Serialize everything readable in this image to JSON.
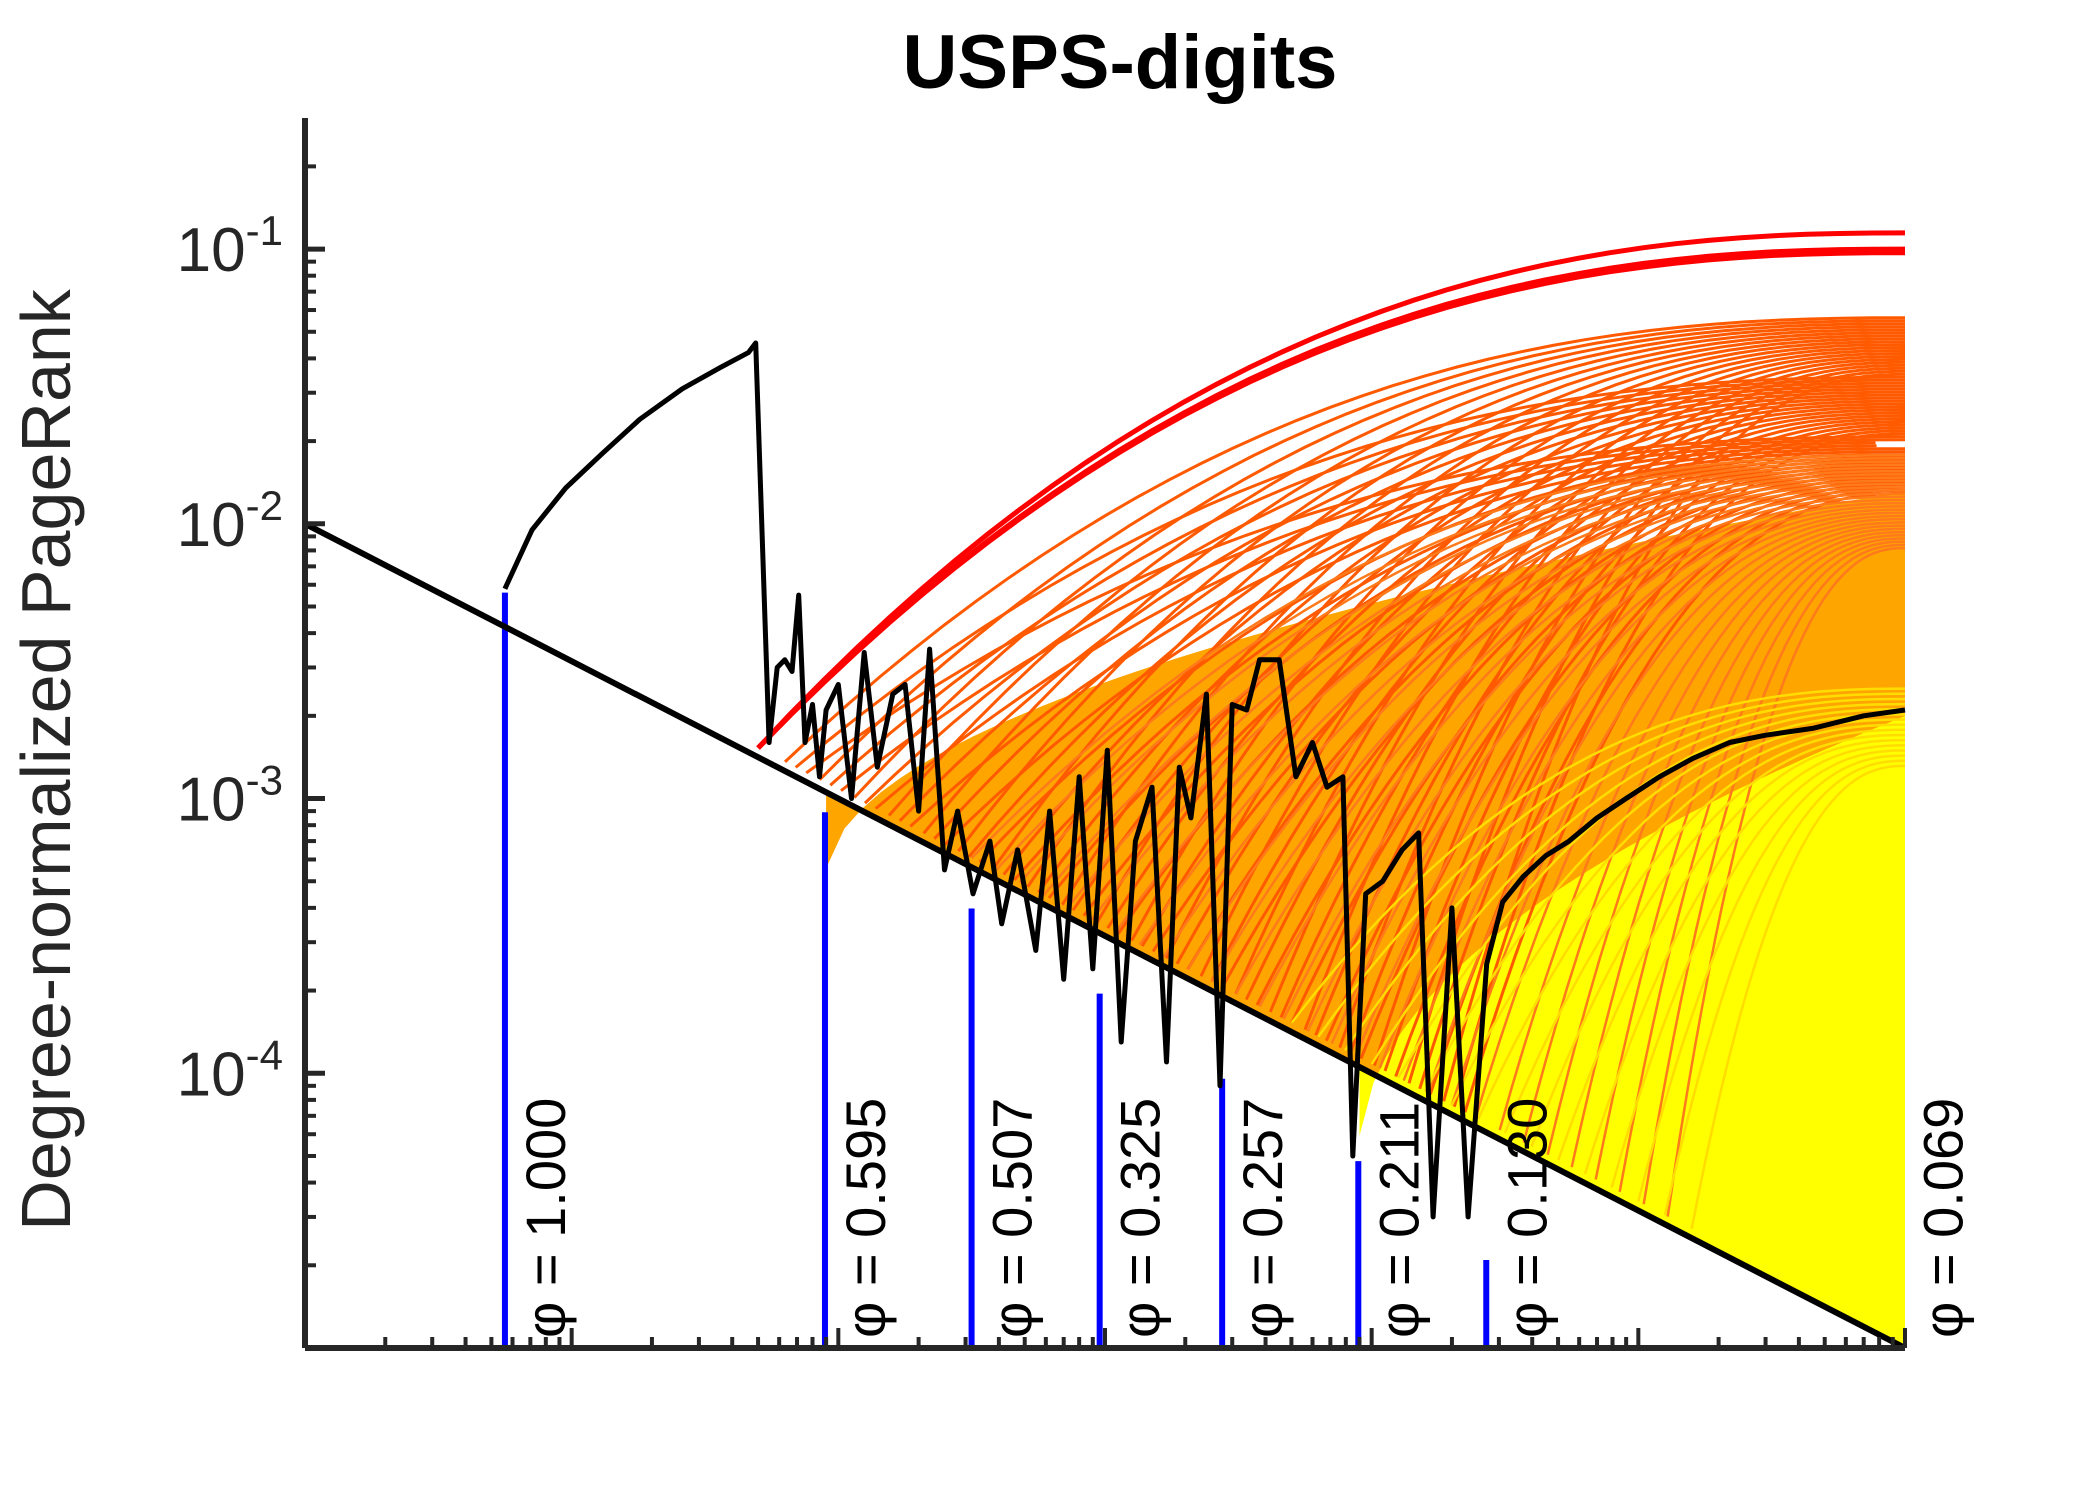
{
  "chart_data": {
    "type": "line",
    "title": "USPS-digits",
    "xlabel": "",
    "ylabel": "Degree-normalized PageRank",
    "yscale": "log",
    "ylim": [
      1e-05,
      0.3
    ],
    "xlim": [
      1e-06,
      1
    ],
    "xscale": "log",
    "yticks": [
      {
        "base": "10",
        "exp": "-1",
        "value": 0.1
      },
      {
        "base": "10",
        "exp": "-2",
        "value": 0.01
      },
      {
        "base": "10",
        "exp": "-3",
        "value": 0.001
      },
      {
        "base": "10",
        "exp": "-4",
        "value": 0.0001
      }
    ],
    "grid": false,
    "colors": {
      "boundary": "#000000",
      "path": "#000000",
      "phi_lines": "#0000ff",
      "series": [
        "#ff0000",
        "#ff5a00",
        "#ff7a1a",
        "#ffa500",
        "#ffff00"
      ]
    },
    "boundary_line": {
      "x": [
        1e-06,
        1
      ],
      "y": [
        0.01,
        1e-05
      ]
    },
    "phi_markers": [
      {
        "label": "φ = 1.000",
        "x": 5.62e-06,
        "y": 0.00562
      },
      {
        "label": "φ = 0.595",
        "x": 8.91e-05,
        "y": 0.000891
      },
      {
        "label": "φ = 0.507",
        "x": 0.000316,
        "y": 0.000398
      },
      {
        "label": "φ = 0.325",
        "x": 0.000955,
        "y": 0.000195
      },
      {
        "label": "φ = 0.257",
        "x": 0.00275,
        "y": 9.55e-05
      },
      {
        "label": "φ = 0.211",
        "x": 0.00891,
        "y": 4.79e-05
      },
      {
        "label": "φ = 0.130",
        "x": 0.0269,
        "y": 2.09e-05
      },
      {
        "label": "φ = 0.069",
        "x": 0.977,
        "y": 1.02e-05
      }
    ],
    "black_path": [
      [
        5.62e-06,
        0.0058
      ],
      [
        7.1e-06,
        0.0095
      ],
      [
        9.5e-06,
        0.0135
      ],
      [
        1.3e-05,
        0.018
      ],
      [
        1.8e-05,
        0.024
      ],
      [
        2.6e-05,
        0.031
      ],
      [
        3.6e-05,
        0.037
      ],
      [
        4.6e-05,
        0.042
      ],
      [
        4.9e-05,
        0.0455
      ],
      [
        5.5e-05,
        0.0016
      ],
      [
        5.9e-05,
        0.003
      ],
      [
        6.3e-05,
        0.0032
      ],
      [
        6.7e-05,
        0.0029
      ],
      [
        7.1e-05,
        0.0055
      ],
      [
        7.5e-05,
        0.0016
      ],
      [
        8e-05,
        0.0022
      ],
      [
        8.5e-05,
        0.0012
      ],
      [
        9e-05,
        0.0021
      ],
      [
        0.0001,
        0.0026
      ],
      [
        0.000112,
        0.001
      ],
      [
        0.000125,
        0.0034
      ],
      [
        0.00014,
        0.0013
      ],
      [
        0.00016,
        0.0024
      ],
      [
        0.000178,
        0.0026
      ],
      [
        0.0002,
        0.0009
      ],
      [
        0.00022,
        0.0035
      ],
      [
        0.00025,
        0.00055
      ],
      [
        0.00028,
        0.0009
      ],
      [
        0.00032,
        0.00045
      ],
      [
        0.00037,
        0.0007
      ],
      [
        0.00041,
        0.00035
      ],
      [
        0.00047,
        0.00065
      ],
      [
        0.00055,
        0.00028
      ],
      [
        0.00062,
        0.0009
      ],
      [
        0.0007,
        0.00022
      ],
      [
        0.0008,
        0.0012
      ],
      [
        0.0009,
        0.00024
      ],
      [
        0.00102,
        0.0015
      ],
      [
        0.00115,
        0.00013
      ],
      [
        0.0013,
        0.0007
      ],
      [
        0.0015,
        0.0011
      ],
      [
        0.0017,
        0.00011
      ],
      [
        0.0019,
        0.0013
      ],
      [
        0.0021,
        0.00085
      ],
      [
        0.0024,
        0.0024
      ],
      [
        0.0027,
        9e-05
      ],
      [
        0.003,
        0.0022
      ],
      [
        0.0034,
        0.0021
      ],
      [
        0.0038,
        0.0032
      ],
      [
        0.0045,
        0.0032
      ],
      [
        0.0052,
        0.0012
      ],
      [
        0.006,
        0.0016
      ],
      [
        0.0068,
        0.0011
      ],
      [
        0.0078,
        0.0012
      ],
      [
        0.0085,
        5e-05
      ],
      [
        0.0095,
        0.00045
      ],
      [
        0.011,
        0.0005
      ],
      [
        0.013,
        0.00065
      ],
      [
        0.015,
        0.00075
      ],
      [
        0.017,
        3e-05
      ],
      [
        0.02,
        0.0004
      ],
      [
        0.023,
        3e-05
      ],
      [
        0.027,
        0.00025
      ],
      [
        0.031,
        0.00042
      ],
      [
        0.037,
        0.00052
      ],
      [
        0.045,
        0.00062
      ],
      [
        0.055,
        0.0007
      ],
      [
        0.07,
        0.00085
      ],
      [
        0.09,
        0.001
      ],
      [
        0.12,
        0.0012
      ],
      [
        0.16,
        0.0014
      ],
      [
        0.22,
        0.0016
      ],
      [
        0.3,
        0.0017
      ],
      [
        0.45,
        0.0018
      ],
      [
        0.7,
        0.002
      ],
      [
        1.0,
        0.0021
      ]
    ]
  }
}
